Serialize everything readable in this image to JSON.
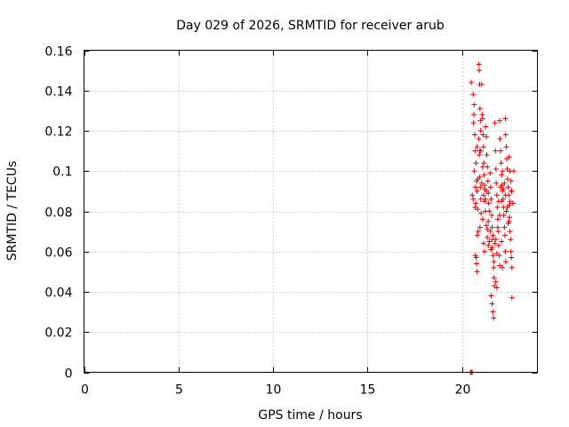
{
  "chart_data": {
    "type": "scatter",
    "title": "Day 029 of 2026, SRMTID for receiver arub",
    "xlabel": "GPS time / hours",
    "ylabel": "SRMTID / TECUs",
    "xlim": [
      0,
      24
    ],
    "ylim": [
      0,
      0.16
    ],
    "xticks": [
      0,
      5,
      10,
      15,
      20
    ],
    "xtick_labels": [
      "0",
      "5",
      "10",
      "15",
      "20"
    ],
    "yticks": [
      0,
      0.02,
      0.04,
      0.06,
      0.08,
      0.1,
      0.12,
      0.14,
      0.16
    ],
    "ytick_labels": [
      "0",
      "0.02",
      "0.04",
      "0.06",
      "0.08",
      "0.1",
      "0.12",
      "0.14",
      "0.16"
    ],
    "grid": true,
    "marker": "plus",
    "color": "#e00000",
    "series": [
      {
        "name": "SRMTID",
        "points": [
          [
            20.45,
            0.0
          ],
          [
            20.5,
            0.0
          ],
          [
            20.55,
            0.0
          ],
          [
            20.5,
            0.144
          ],
          [
            20.55,
            0.088
          ],
          [
            20.6,
            0.086
          ],
          [
            20.62,
            0.124
          ],
          [
            20.65,
            0.133
          ],
          [
            20.68,
            0.118
          ],
          [
            20.7,
            0.11
          ],
          [
            20.72,
            0.092
          ],
          [
            20.74,
            0.084
          ],
          [
            20.76,
            0.057
          ],
          [
            20.78,
            0.054
          ],
          [
            20.8,
            0.05
          ],
          [
            20.82,
            0.068
          ],
          [
            20.6,
            0.138
          ],
          [
            20.64,
            0.128
          ],
          [
            20.66,
            0.1
          ],
          [
            20.7,
            0.082
          ],
          [
            20.72,
            0.058
          ],
          [
            20.75,
            0.104
          ],
          [
            20.78,
            0.095
          ],
          [
            20.8,
            0.09
          ],
          [
            20.84,
            0.081
          ],
          [
            20.86,
            0.07
          ],
          [
            20.9,
            0.153
          ],
          [
            20.92,
            0.15
          ],
          [
            20.94,
            0.143
          ],
          [
            20.96,
            0.131
          ],
          [
            20.98,
            0.125
          ],
          [
            21.0,
            0.12
          ],
          [
            20.9,
            0.116
          ],
          [
            20.92,
            0.108
          ],
          [
            20.95,
            0.097
          ],
          [
            20.98,
            0.092
          ],
          [
            21.0,
            0.086
          ],
          [
            21.02,
            0.079
          ],
          [
            20.96,
            0.072
          ],
          [
            21.05,
            0.143
          ],
          [
            21.08,
            0.128
          ],
          [
            21.1,
            0.126
          ],
          [
            21.12,
            0.118
          ],
          [
            21.14,
            0.112
          ],
          [
            21.16,
            0.104
          ],
          [
            21.18,
            0.098
          ],
          [
            21.2,
            0.093
          ],
          [
            21.22,
            0.091
          ],
          [
            21.24,
            0.086
          ],
          [
            21.1,
            0.076
          ],
          [
            21.15,
            0.064
          ],
          [
            21.2,
            0.06
          ],
          [
            21.25,
            0.122
          ],
          [
            21.3,
            0.117
          ],
          [
            21.32,
            0.108
          ],
          [
            21.35,
            0.102
          ],
          [
            21.38,
            0.095
          ],
          [
            21.4,
            0.089
          ],
          [
            21.42,
            0.084
          ],
          [
            21.45,
            0.08
          ],
          [
            21.3,
            0.073
          ],
          [
            21.35,
            0.067
          ],
          [
            21.4,
            0.063
          ],
          [
            21.5,
            0.099
          ],
          [
            21.52,
            0.092
          ],
          [
            21.55,
            0.086
          ],
          [
            21.58,
            0.078
          ],
          [
            21.6,
            0.072
          ],
          [
            21.62,
            0.066
          ],
          [
            21.65,
            0.058
          ],
          [
            21.68,
            0.052
          ],
          [
            21.7,
            0.047
          ],
          [
            21.72,
            0.043
          ],
          [
            21.55,
            0.038
          ],
          [
            21.6,
            0.034
          ],
          [
            21.65,
            0.03
          ],
          [
            21.68,
            0.027
          ],
          [
            21.75,
            0.124
          ],
          [
            21.78,
            0.11
          ],
          [
            21.8,
            0.101
          ],
          [
            21.82,
            0.094
          ],
          [
            21.85,
            0.088
          ],
          [
            21.88,
            0.082
          ],
          [
            21.9,
            0.076
          ],
          [
            21.92,
            0.07
          ],
          [
            21.95,
            0.063
          ],
          [
            21.98,
            0.058
          ],
          [
            22.0,
            0.053
          ],
          [
            21.8,
            0.045
          ],
          [
            21.85,
            0.042
          ],
          [
            22.0,
            0.125
          ],
          [
            22.02,
            0.116
          ],
          [
            22.05,
            0.11
          ],
          [
            22.08,
            0.104
          ],
          [
            22.1,
            0.098
          ],
          [
            22.12,
            0.093
          ],
          [
            22.15,
            0.09
          ],
          [
            22.18,
            0.086
          ],
          [
            22.2,
            0.082
          ],
          [
            22.22,
            0.078
          ],
          [
            22.25,
            0.072
          ],
          [
            22.28,
            0.068
          ],
          [
            22.3,
            0.06
          ],
          [
            22.32,
            0.055
          ],
          [
            22.1,
            0.065
          ],
          [
            22.15,
            0.052
          ],
          [
            22.3,
            0.126
          ],
          [
            22.32,
            0.118
          ],
          [
            22.35,
            0.112
          ],
          [
            22.38,
            0.106
          ],
          [
            22.4,
            0.101
          ],
          [
            22.42,
            0.096
          ],
          [
            22.45,
            0.092
          ],
          [
            22.48,
            0.088
          ],
          [
            22.5,
            0.083
          ],
          [
            22.52,
            0.077
          ],
          [
            22.55,
            0.07
          ],
          [
            22.58,
            0.066
          ],
          [
            22.6,
            0.06
          ],
          [
            22.62,
            0.057
          ],
          [
            22.65,
            0.052
          ],
          [
            22.5,
            0.107
          ],
          [
            22.55,
            0.1
          ],
          [
            22.6,
            0.095
          ],
          [
            22.65,
            0.09
          ],
          [
            22.7,
            0.084
          ],
          [
            22.75,
            0.1
          ],
          [
            22.65,
            0.037
          ],
          [
            21.0,
            0.11
          ],
          [
            21.1,
            0.102
          ],
          [
            21.2,
            0.085
          ],
          [
            21.3,
            0.09
          ],
          [
            21.4,
            0.075
          ],
          [
            21.5,
            0.07
          ],
          [
            21.6,
            0.062
          ],
          [
            21.7,
            0.055
          ],
          [
            21.8,
            0.066
          ],
          [
            21.9,
            0.072
          ],
          [
            22.0,
            0.078
          ],
          [
            22.1,
            0.085
          ],
          [
            22.2,
            0.091
          ],
          [
            22.3,
            0.088
          ],
          [
            22.4,
            0.082
          ],
          [
            22.5,
            0.075
          ],
          [
            20.8,
            0.112
          ],
          [
            20.85,
            0.096
          ],
          [
            20.95,
            0.11
          ],
          [
            21.05,
            0.094
          ],
          [
            21.15,
            0.088
          ],
          [
            21.25,
            0.08
          ],
          [
            21.35,
            0.071
          ],
          [
            21.45,
            0.065
          ],
          [
            21.55,
            0.061
          ],
          [
            21.65,
            0.068
          ],
          [
            21.75,
            0.064
          ],
          [
            21.85,
            0.059
          ],
          [
            21.95,
            0.085
          ],
          [
            22.05,
            0.092
          ],
          [
            22.15,
            0.1
          ],
          [
            22.25,
            0.094
          ],
          [
            22.35,
            0.08
          ],
          [
            22.45,
            0.074
          ],
          [
            22.55,
            0.085
          ],
          [
            22.62,
            0.09
          ]
        ]
      }
    ]
  }
}
